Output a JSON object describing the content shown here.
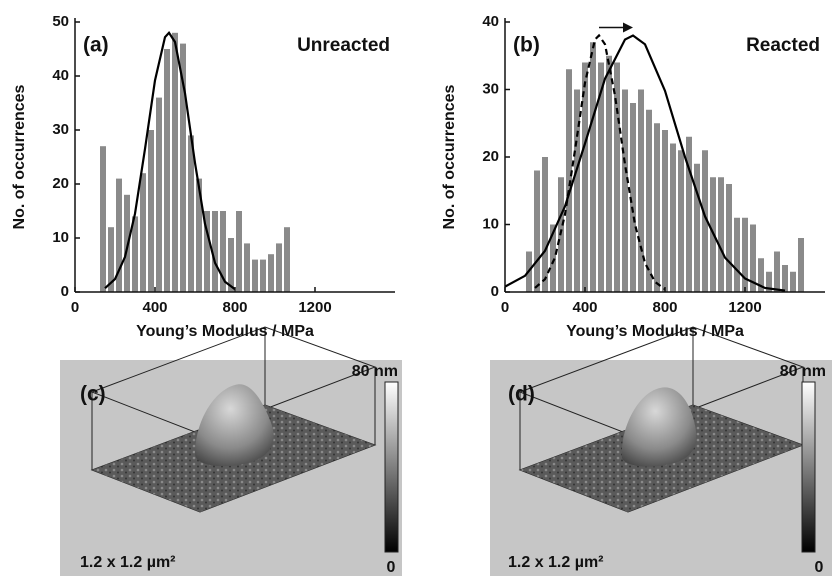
{
  "chart_data": [
    {
      "type": "histogram",
      "label": "(a)",
      "title": "Unreacted",
      "xlabel": "Young’s Modulus / MPa",
      "ylabel": "No. of occurrences",
      "bins": [
        120,
        160,
        200,
        240,
        280,
        320,
        360,
        400,
        440,
        480,
        520,
        560,
        600,
        640,
        680,
        720,
        760,
        800,
        840,
        880,
        920,
        960,
        1000,
        1040,
        1080
      ],
      "counts": [
        27,
        12,
        21,
        18,
        14,
        22,
        30,
        36,
        45,
        48,
        46,
        29,
        21,
        15,
        15,
        15,
        10,
        15,
        9,
        6,
        6,
        7,
        9,
        12
      ],
      "color": "#8a8a8a",
      "curves": [
        {
          "x": [
            150,
            200,
            250,
            300,
            350,
            400,
            450,
            470,
            500,
            550,
            600,
            650,
            700,
            750,
            800
          ],
          "y": [
            0.7,
            2.4,
            6.5,
            14.5,
            26.5,
            39.2,
            47.2,
            48,
            46.3,
            36.8,
            23.9,
            12.6,
            5.4,
            1.9,
            0.5
          ],
          "color": "#000000",
          "linestyle": "solid"
        }
      ],
      "xlim": [
        0,
        1600
      ],
      "ylim": [
        0,
        50
      ],
      "xticks": [
        0,
        400,
        800,
        1200
      ],
      "yticks": [
        0,
        10,
        20,
        30,
        40,
        50
      ]
    },
    {
      "type": "histogram",
      "label": "(b)",
      "title": "Reacted",
      "xlabel": "Young’s Modulus / MPa",
      "ylabel": "No. of occurrences",
      "bins": [
        100,
        140,
        180,
        220,
        260,
        300,
        340,
        380,
        420,
        460,
        500,
        540,
        580,
        620,
        660,
        700,
        740,
        780,
        820,
        860,
        900,
        940,
        980,
        1020,
        1060,
        1100,
        1140,
        1180,
        1220,
        1260,
        1300,
        1340,
        1380,
        1420,
        1460,
        1500
      ],
      "counts": [
        6,
        18,
        20,
        10,
        17,
        33,
        30,
        34,
        37,
        34,
        35,
        34,
        30,
        28,
        30,
        27,
        25,
        24,
        22,
        21,
        23,
        19,
        21,
        17,
        17,
        16,
        11,
        11,
        10,
        5,
        3,
        6,
        4,
        3,
        8
      ],
      "color": "#8a8a8a",
      "curves": [
        {
          "x": [
            0,
            100,
            200,
            300,
            400,
            500,
            600,
            640,
            700,
            800,
            900,
            1000,
            1100,
            1200,
            1300,
            1400
          ],
          "y": [
            0.8,
            2.4,
            6.1,
            12.7,
            22.0,
            31.6,
            37.4,
            38,
            36.7,
            29.8,
            20.0,
            11.2,
            5.1,
            2.0,
            0.6,
            0.2
          ],
          "color": "#000000",
          "linestyle": "solid"
        },
        {
          "x": [
            150,
            200,
            250,
            300,
            350,
            400,
            450,
            470,
            500,
            550,
            600,
            650,
            700,
            750,
            800
          ],
          "y": [
            0.6,
            1.9,
            5.1,
            11.5,
            21,
            31,
            37.4,
            38,
            36.7,
            29.1,
            18.9,
            10,
            4.3,
            1.5,
            0.4
          ],
          "color": "#000000",
          "linestyle": "dashed"
        }
      ],
      "xlim": [
        0,
        1600
      ],
      "ylim": [
        0,
        40
      ],
      "xticks": [
        0,
        400,
        800,
        1200
      ],
      "yticks": [
        0,
        10,
        20,
        30,
        40
      ]
    }
  ],
  "images": [
    {
      "label": "(c)",
      "scale_max": "80 nm",
      "scale_min": "0",
      "size": "1.2 x 1.2 µm²"
    },
    {
      "label": "(d)",
      "scale_max": "80 nm",
      "scale_min": "0",
      "size": "1.2 x 1.2 µm²"
    }
  ]
}
